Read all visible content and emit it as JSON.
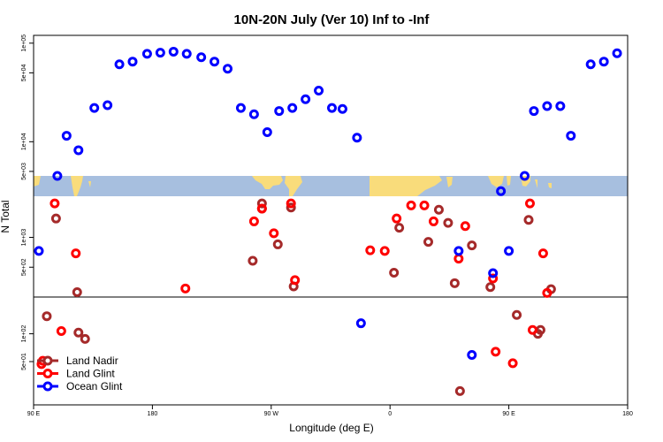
{
  "chart_data": {
    "type": "scatter",
    "title": "10N-20N July (Ver 10)   Inf to -Inf",
    "xlabel": "Longitude (deg E)",
    "ylabel": "N Total",
    "y_scale": "log",
    "x_ticks": [
      {
        "value": 90,
        "label": "90 E"
      },
      {
        "value": 180,
        "label": "180"
      },
      {
        "value": 270,
        "label": "90 W"
      },
      {
        "value": 360,
        "label": "0"
      },
      {
        "value": 450,
        "label": "90 E"
      },
      {
        "value": 540,
        "label": "180"
      }
    ],
    "xlim": [
      90,
      540
    ],
    "panels": [
      {
        "name": "upper",
        "ylim": [
          4500,
          120000
        ],
        "ticks": [
          {
            "value": 5000,
            "label": "5e+03"
          },
          {
            "value": 10000,
            "label": "1e+04"
          },
          {
            "value": 50000,
            "label": "5e+04"
          },
          {
            "value": 100000,
            "label": "1e+05"
          }
        ]
      },
      {
        "name": "middle",
        "ylim": [
          250,
          2600
        ],
        "ticks": [
          {
            "value": 500,
            "label": "5e+02"
          },
          {
            "value": 1000,
            "label": "1e+03"
          }
        ]
      },
      {
        "name": "lower",
        "ylim": [
          17,
          250
        ],
        "ticks": [
          {
            "value": 50,
            "label": "5e+01"
          },
          {
            "value": 100,
            "label": "1e+02"
          }
        ]
      }
    ],
    "legend_position": "bottom-left",
    "series": [
      {
        "name": "Land Nadir",
        "color": "#a52a2a",
        "points": [
          [
            100,
            155
          ],
          [
            107,
            1550
          ],
          [
            123,
            280
          ],
          [
            129,
            88
          ],
          [
            124,
            103
          ],
          [
            256,
            580
          ],
          [
            263,
            2200
          ],
          [
            263,
            1950
          ],
          [
            275,
            850
          ],
          [
            285,
            2000
          ],
          [
            287,
            320
          ],
          [
            363,
            440
          ],
          [
            367,
            1250
          ],
          [
            389,
            900
          ],
          [
            397,
            1900
          ],
          [
            404,
            1400
          ],
          [
            409,
            345
          ],
          [
            413,
            24
          ],
          [
            422,
            830
          ],
          [
            436,
            315
          ],
          [
            456,
            160
          ],
          [
            465,
            1500
          ],
          [
            482,
            300
          ],
          [
            474,
            110
          ],
          [
            472,
            100
          ]
        ]
      },
      {
        "name": "Land Glint",
        "color": "#ff0000",
        "points": [
          [
            96,
            47
          ],
          [
            97,
            51
          ],
          [
            106,
            2200
          ],
          [
            111,
            107
          ],
          [
            122,
            690
          ],
          [
            205,
            305
          ],
          [
            257,
            1450
          ],
          [
            263,
            1950
          ],
          [
            272,
            1100
          ],
          [
            285,
            2200
          ],
          [
            288,
            370
          ],
          [
            345,
            740
          ],
          [
            356,
            730
          ],
          [
            365,
            1550
          ],
          [
            376,
            2100
          ],
          [
            386,
            2100
          ],
          [
            393,
            1450
          ],
          [
            412,
            610
          ],
          [
            417,
            1300
          ],
          [
            438,
            385
          ],
          [
            440,
            64
          ],
          [
            453,
            48
          ],
          [
            466,
            2200
          ],
          [
            468,
            110
          ],
          [
            476,
            690
          ],
          [
            479,
            275
          ]
        ]
      },
      {
        "name": "Ocean Glint",
        "color": "#0000ff",
        "points": [
          [
            94,
            730
          ],
          [
            108,
            4500
          ],
          [
            115,
            11500
          ],
          [
            124,
            8200
          ],
          [
            136,
            22000
          ],
          [
            146,
            23500
          ],
          [
            155,
            61000
          ],
          [
            165,
            65000
          ],
          [
            176,
            78000
          ],
          [
            186,
            80000
          ],
          [
            196,
            82000
          ],
          [
            206,
            78000
          ],
          [
            217,
            72000
          ],
          [
            227,
            65000
          ],
          [
            237,
            55000
          ],
          [
            247,
            22000
          ],
          [
            257,
            19000
          ],
          [
            267,
            12500
          ],
          [
            276,
            20500
          ],
          [
            286,
            22000
          ],
          [
            296,
            27000
          ],
          [
            306,
            33000
          ],
          [
            316,
            22000
          ],
          [
            324,
            21500
          ],
          [
            335,
            11000
          ],
          [
            338,
            130
          ],
          [
            412,
            730
          ],
          [
            422,
            59
          ],
          [
            438,
            435
          ],
          [
            444,
            3500
          ],
          [
            450,
            730
          ],
          [
            462,
            4500
          ],
          [
            469,
            20500
          ],
          [
            479,
            23000
          ],
          [
            489,
            23000
          ],
          [
            497,
            11500
          ],
          [
            512,
            61000
          ],
          [
            522,
            65000
          ],
          [
            532,
            79000
          ]
        ]
      }
    ]
  }
}
